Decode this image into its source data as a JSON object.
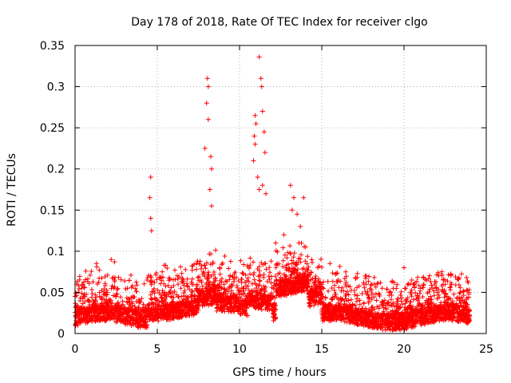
{
  "chart_data": {
    "type": "scatter",
    "title": "Day 178 of 2018, Rate Of TEC Index for receiver clgo",
    "xlabel": "GPS time / hours",
    "ylabel": "ROTI / TECUs",
    "xlim": [
      0,
      25
    ],
    "ylim": [
      0,
      0.35
    ],
    "xticks": [
      0,
      5,
      10,
      15,
      20,
      25
    ],
    "xtick_labels": [
      "0",
      "5",
      "10",
      "15",
      "20",
      "25"
    ],
    "yticks": [
      0,
      0.05,
      0.1,
      0.15,
      0.2,
      0.25,
      0.3,
      0.35
    ],
    "ytick_labels": [
      "0",
      "0.05",
      "0.1",
      "0.15",
      "0.2",
      "0.25",
      "0.3",
      "0.35"
    ],
    "grid": true,
    "marker": "+",
    "color": "#ff0000",
    "data_range_hours": [
      0,
      24
    ],
    "baseline_roti": 0.02,
    "notable_points": [
      {
        "x": 4.6,
        "y": 0.19
      },
      {
        "x": 4.55,
        "y": 0.165
      },
      {
        "x": 4.6,
        "y": 0.14
      },
      {
        "x": 4.65,
        "y": 0.125
      },
      {
        "x": 7.9,
        "y": 0.225
      },
      {
        "x": 8.05,
        "y": 0.31
      },
      {
        "x": 8.1,
        "y": 0.3
      },
      {
        "x": 8.0,
        "y": 0.28
      },
      {
        "x": 8.1,
        "y": 0.26
      },
      {
        "x": 8.3,
        "y": 0.2
      },
      {
        "x": 8.25,
        "y": 0.215
      },
      {
        "x": 8.2,
        "y": 0.175
      },
      {
        "x": 8.3,
        "y": 0.155
      },
      {
        "x": 11.2,
        "y": 0.336
      },
      {
        "x": 11.3,
        "y": 0.31
      },
      {
        "x": 11.35,
        "y": 0.3
      },
      {
        "x": 11.4,
        "y": 0.27
      },
      {
        "x": 11.5,
        "y": 0.245
      },
      {
        "x": 11.55,
        "y": 0.22
      },
      {
        "x": 10.95,
        "y": 0.265
      },
      {
        "x": 11.0,
        "y": 0.255
      },
      {
        "x": 10.9,
        "y": 0.24
      },
      {
        "x": 10.95,
        "y": 0.23
      },
      {
        "x": 11.1,
        "y": 0.19
      },
      {
        "x": 11.2,
        "y": 0.175
      },
      {
        "x": 10.85,
        "y": 0.21
      },
      {
        "x": 11.4,
        "y": 0.18
      },
      {
        "x": 11.6,
        "y": 0.17
      },
      {
        "x": 13.1,
        "y": 0.18
      },
      {
        "x": 13.3,
        "y": 0.165
      },
      {
        "x": 13.9,
        "y": 0.165
      },
      {
        "x": 13.5,
        "y": 0.145
      },
      {
        "x": 13.2,
        "y": 0.15
      },
      {
        "x": 13.7,
        "y": 0.13
      },
      {
        "x": 1.3,
        "y": 0.085
      },
      {
        "x": 2.2,
        "y": 0.09
      },
      {
        "x": 2.4,
        "y": 0.087
      },
      {
        "x": 5.5,
        "y": 0.083
      },
      {
        "x": 5.3,
        "y": 0.075
      },
      {
        "x": 7.1,
        "y": 0.082
      },
      {
        "x": 7.4,
        "y": 0.085
      },
      {
        "x": 12.2,
        "y": 0.11
      },
      {
        "x": 12.7,
        "y": 0.12
      },
      {
        "x": 15.5,
        "y": 0.085
      },
      {
        "x": 16.0,
        "y": 0.065
      },
      {
        "x": 16.6,
        "y": 0.058
      },
      {
        "x": 17.7,
        "y": 0.07
      },
      {
        "x": 18.2,
        "y": 0.06
      },
      {
        "x": 19.4,
        "y": 0.062
      },
      {
        "x": 20.0,
        "y": 0.08
      },
      {
        "x": 20.4,
        "y": 0.05
      },
      {
        "x": 21.2,
        "y": 0.06
      },
      {
        "x": 22.1,
        "y": 0.07
      },
      {
        "x": 22.4,
        "y": 0.065
      },
      {
        "x": 23.3,
        "y": 0.066
      },
      {
        "x": 23.8,
        "y": 0.068
      },
      {
        "x": 0.1,
        "y": 0.06
      },
      {
        "x": 0.2,
        "y": 0.05
      }
    ]
  }
}
